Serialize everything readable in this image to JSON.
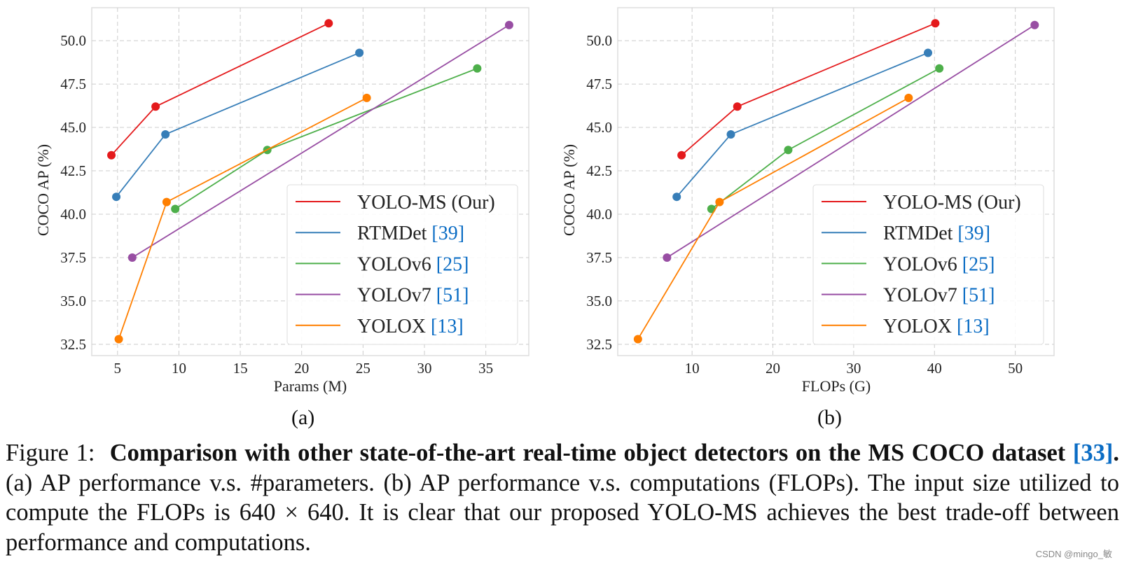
{
  "colors": {
    "YOLO-MS": "#e41a1c",
    "RTMDet": "#377eb8",
    "YOLOv6": "#4daf4a",
    "YOLOv7": "#984ea3",
    "YOLOX": "#ff7f00",
    "ref": "#0a6cc4"
  },
  "chart_data": [
    {
      "type": "line",
      "subfigure_label": "(a)",
      "xlabel": "Params (M)",
      "ylabel": "COCO AP (%)",
      "xlim": [
        2.9,
        38.5
      ],
      "ylim": [
        31.85,
        51.9
      ],
      "xticks": [
        5,
        10,
        15,
        20,
        25,
        30,
        35
      ],
      "yticks": [
        "32.5",
        "35.0",
        "37.5",
        "40.0",
        "42.5",
        "45.0",
        "47.5",
        "50.0"
      ],
      "grid": true,
      "legend_position": "bottom-right",
      "series": [
        {
          "name": "YOLO-MS (Our)",
          "ref": "",
          "x": [
            4.5,
            8.1,
            22.2
          ],
          "y": [
            43.4,
            46.2,
            51.0
          ]
        },
        {
          "name": "RTMDet",
          "ref": "[39]",
          "x": [
            4.9,
            8.9,
            24.7
          ],
          "y": [
            41.0,
            44.6,
            49.3
          ]
        },
        {
          "name": "YOLOv6",
          "ref": "[25]",
          "x": [
            9.7,
            17.2,
            34.3
          ],
          "y": [
            40.3,
            43.7,
            48.4
          ]
        },
        {
          "name": "YOLOv7",
          "ref": "[51]",
          "x": [
            6.2,
            36.9
          ],
          "y": [
            37.5,
            50.9
          ]
        },
        {
          "name": "YOLOX",
          "ref": "[13]",
          "x": [
            5.1,
            9.0,
            25.3
          ],
          "y": [
            32.8,
            40.7,
            46.7
          ]
        }
      ]
    },
    {
      "type": "line",
      "subfigure_label": "(b)",
      "xlabel": "FLOPs (G)",
      "ylabel": "COCO AP (%)",
      "xlim": [
        0.8,
        54.8
      ],
      "ylim": [
        31.85,
        51.9
      ],
      "xticks": [
        10,
        20,
        30,
        40,
        50
      ],
      "yticks": [
        "32.5",
        "35.0",
        "37.5",
        "40.0",
        "42.5",
        "45.0",
        "47.5",
        "50.0"
      ],
      "grid": true,
      "legend_position": "bottom-right",
      "series": [
        {
          "name": "YOLO-MS (Our)",
          "ref": "",
          "x": [
            8.7,
            15.6,
            40.1
          ],
          "y": [
            43.4,
            46.2,
            51.0
          ]
        },
        {
          "name": "RTMDet",
          "ref": "[39]",
          "x": [
            8.1,
            14.8,
            39.2
          ],
          "y": [
            41.0,
            44.6,
            49.3
          ]
        },
        {
          "name": "YOLOv6",
          "ref": "[25]",
          "x": [
            12.4,
            21.9,
            40.6
          ],
          "y": [
            40.3,
            43.7,
            48.4
          ]
        },
        {
          "name": "YOLOv7",
          "ref": "[51]",
          "x": [
            6.9,
            52.4
          ],
          "y": [
            37.5,
            50.9
          ]
        },
        {
          "name": "YOLOX",
          "ref": "[13]",
          "x": [
            3.3,
            13.4,
            36.8
          ],
          "y": [
            32.8,
            40.7,
            46.7
          ]
        }
      ]
    }
  ],
  "caption": {
    "label": "Figure 1:",
    "bold": "Comparison with other state-of-the-art real-time object detectors on the MS COCO dataset",
    "bold_ref": "[33]",
    "bold_end": ".",
    "text": "(a) AP performance v.s. #parameters. (b) AP performance v.s. computations (FLOPs). The input size utilized to compute the FLOPs is 640 × 640. It is clear that our proposed YOLO-MS achieves the best trade-off between performance and computations."
  },
  "watermark": "CSDN @mingo_敏"
}
